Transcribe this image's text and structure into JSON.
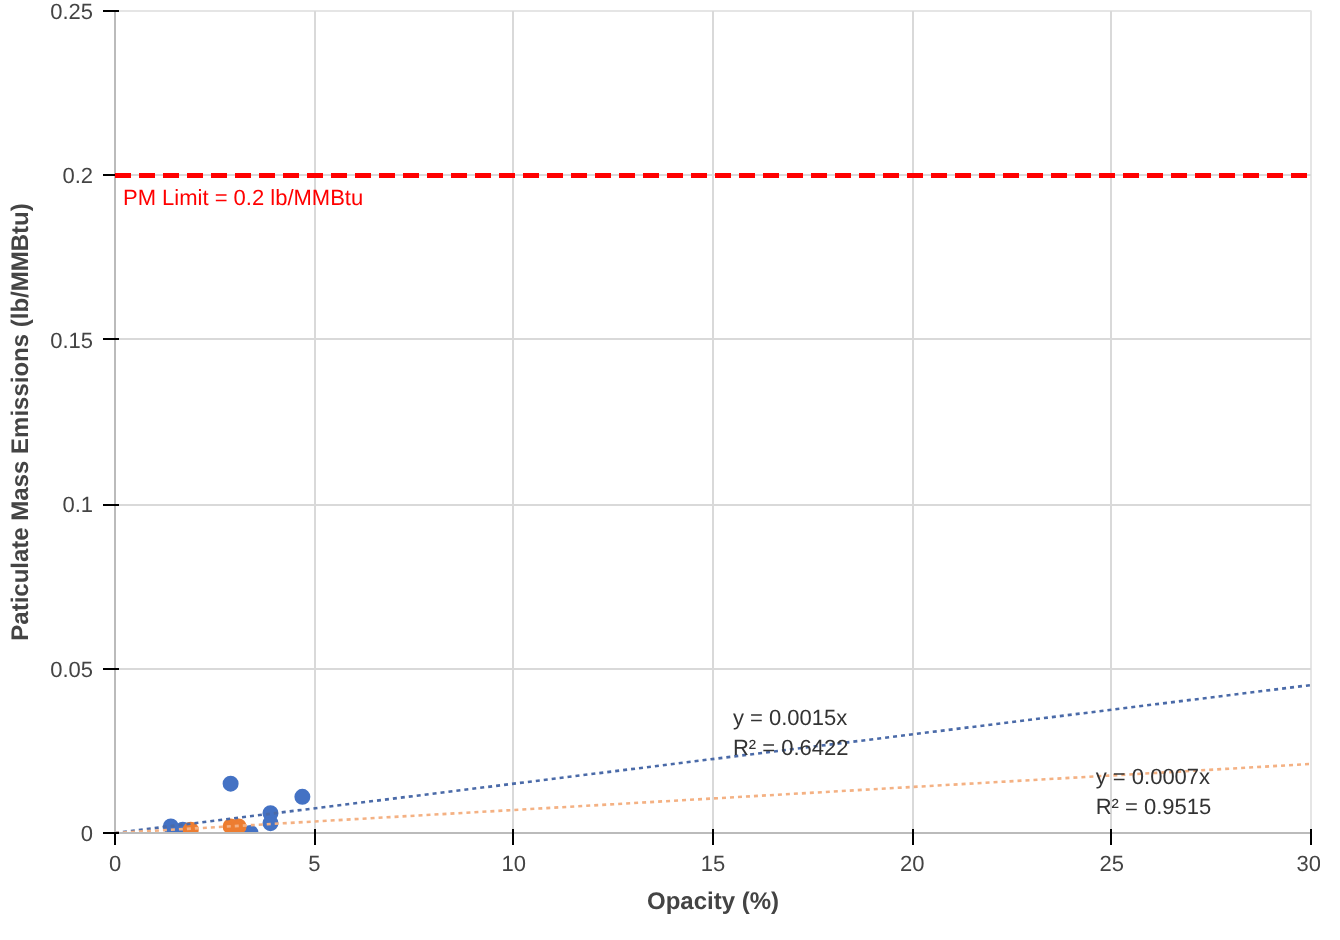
{
  "chart_data": {
    "type": "scatter",
    "xlabel": "Opacity (%)",
    "ylabel": "Paticulate Mass Emissions (lb/MMBtu)",
    "xlim": [
      0,
      30
    ],
    "xticks": [
      0,
      5,
      10,
      15,
      20,
      25,
      30
    ],
    "ylim": [
      0,
      0.25
    ],
    "yticks": [
      0,
      0.05,
      0.1,
      0.15,
      0.2,
      0.25
    ],
    "grid": true,
    "marker": "circle",
    "series": [
      {
        "color": "#4472c4",
        "x": [
          2.9,
          4.7,
          3.9,
          3.9,
          3.4,
          1.4,
          1.7
        ],
        "values": [
          0.015,
          0.011,
          0.006,
          0.003,
          0.0,
          0.002,
          0.001
        ]
      },
      {
        "color": "#ed7d31",
        "x": [
          1.9,
          2.9,
          3.1
        ],
        "values": [
          0.001,
          0.002,
          0.002
        ]
      },
      {
        "type": "line",
        "color": "#4a6aa8",
        "line_style": "dotted",
        "marker": "none",
        "x": [
          0,
          30
        ],
        "values": [
          0,
          0.045
        ]
      },
      {
        "type": "line",
        "color": "#f4b183",
        "line_style": "dotted",
        "marker": "none",
        "x": [
          0,
          30
        ],
        "values": [
          0,
          0.021
        ]
      }
    ],
    "ref_lines": [
      {
        "axis": "y",
        "value": 0.2,
        "label": "PM Limit = 0.2 lb/MMBtu",
        "color": "#ff0000",
        "line_style": "dashed"
      }
    ],
    "annotations": [
      "y = 0.0015x",
      "R² = 0.6422",
      "y = 0.0007x",
      "R² = 0.9515"
    ]
  }
}
